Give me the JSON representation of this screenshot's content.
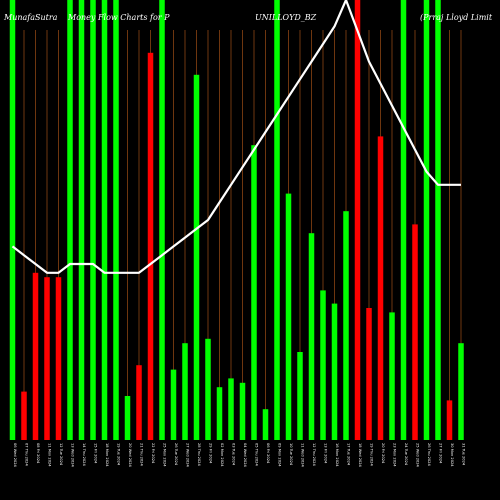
{
  "header": {
    "site": "MunafaSutra",
    "subtitle": "Money Flow Charts for P",
    "symbol": "UNILLOYD_BZ",
    "company": "(Prraj Lloyd Limit"
  },
  "chart_data": {
    "type": "bar",
    "categories": [
      "06 Wed 2024",
      "07 Thu 2024",
      "08 Fri 2024",
      "11 Mon 2024",
      "12 Tue 2024",
      "13 Wed 2024",
      "14 Thu 2024",
      "15 Fri 2024",
      "18 Mon 2024",
      "19 Tue 2024",
      "20 Wed 2024",
      "21 Thu 2024",
      "22 Fri 2024",
      "25 Mon 2024",
      "26 Tue 2024",
      "27 Wed 2024",
      "28 Thu 2024",
      "29 Fri 2024",
      "02 Mon 2024",
      "03 Tue 2024",
      "04 Wed 2024",
      "05 Thu 2024",
      "06 Fri 2024",
      "09 Mon 2024",
      "10 Tue 2024",
      "11 Wed 2024",
      "12 Thu 2024",
      "13 Fri 2024",
      "16 Mon 2024",
      "17 Tue 2024",
      "18 Wed 2024",
      "19 Thu 2024",
      "20 Fri 2024",
      "23 Mon 2024",
      "24 Tue 2024",
      "25 Wed 2024",
      "26 Thu 2024",
      "27 Fri 2024",
      "30 Mon 2024",
      "31 Tue 2024"
    ],
    "series": [
      {
        "values": [
          100,
          11,
          38,
          37,
          37,
          100,
          100,
          100,
          100,
          100,
          10,
          17,
          88,
          100,
          16,
          22,
          83,
          23,
          12,
          14,
          13,
          67,
          7,
          100,
          56,
          20,
          47,
          34,
          31,
          52,
          100,
          30,
          69,
          29,
          100,
          49,
          100,
          100,
          9,
          22
        ],
        "colors": [
          "#00ff00",
          "#ff0000",
          "#ff0000",
          "#ff0000",
          "#ff0000",
          "#00ff00",
          "#00ff00",
          "#00ff00",
          "#00ff00",
          "#00ff00",
          "#00ff00",
          "#ff0000",
          "#ff0000",
          "#00ff00",
          "#00ff00",
          "#00ff00",
          "#00ff00",
          "#00ff00",
          "#00ff00",
          "#00ff00",
          "#00ff00",
          "#00ff00",
          "#00ff00",
          "#00ff00",
          "#00ff00",
          "#00ff00",
          "#00ff00",
          "#00ff00",
          "#00ff00",
          "#00ff00",
          "#ff0000",
          "#ff0000",
          "#ff0000",
          "#00ff00",
          "#00ff00",
          "#ff0000",
          "#00ff00",
          "#00ff00",
          "#ff0000",
          "#00ff00"
        ]
      },
      {
        "type": "line",
        "color": "#ffffff",
        "values": [
          44,
          42,
          40,
          38,
          38,
          40,
          40,
          40,
          38,
          38,
          38,
          38,
          40,
          42,
          44,
          46,
          48,
          50,
          54,
          58,
          62,
          66,
          70,
          74,
          78,
          82,
          86,
          90,
          94,
          100,
          93,
          86,
          81,
          76,
          71,
          66,
          61,
          58,
          58,
          58
        ]
      }
    ],
    "ylim": [
      0,
      100
    ],
    "grid": true,
    "grid_color": "#8b4513",
    "legend": "none"
  }
}
